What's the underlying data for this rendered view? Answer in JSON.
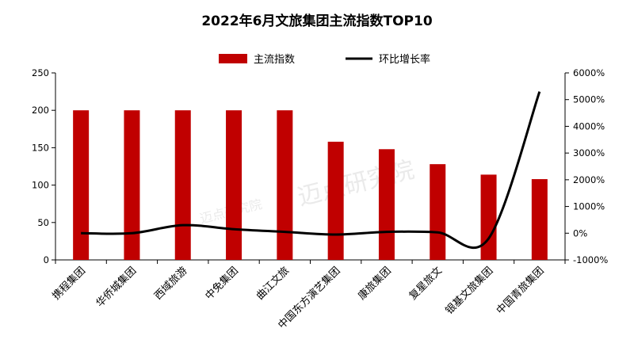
{
  "chart_data": {
    "type": "bar+line",
    "title": "2022年6月文旅集团主流指数TOP10",
    "categories": [
      "携程集团",
      "华侨城集团",
      "西域旅游",
      "中免集团",
      "曲江文旅",
      "中国东方演艺集团",
      "康旅集团",
      "复星旅文",
      "银基文旅集团",
      "中国青旅集团"
    ],
    "series": [
      {
        "name": "主流指数",
        "type": "bar",
        "axis": "left",
        "color": "#c00000",
        "values": [
          200,
          200,
          200,
          200,
          200,
          158,
          148,
          128,
          114,
          108
        ]
      },
      {
        "name": "环比增长率",
        "type": "line",
        "axis": "right",
        "color": "#000000",
        "values": [
          0,
          0,
          300,
          150,
          50,
          -50,
          50,
          30,
          -200,
          5300
        ]
      }
    ],
    "y_left": {
      "min": 0,
      "max": 250,
      "ticks": [
        "0",
        "50",
        "100",
        "150",
        "200",
        "250"
      ]
    },
    "y_right": {
      "min": -1000,
      "max": 6000,
      "ticks": [
        "-1000%",
        "0%",
        "1000%",
        "2000%",
        "3000%",
        "4000%",
        "5000%",
        "6000%"
      ]
    },
    "legend": "top-center",
    "grid": false
  },
  "watermark": "迈点研究院"
}
